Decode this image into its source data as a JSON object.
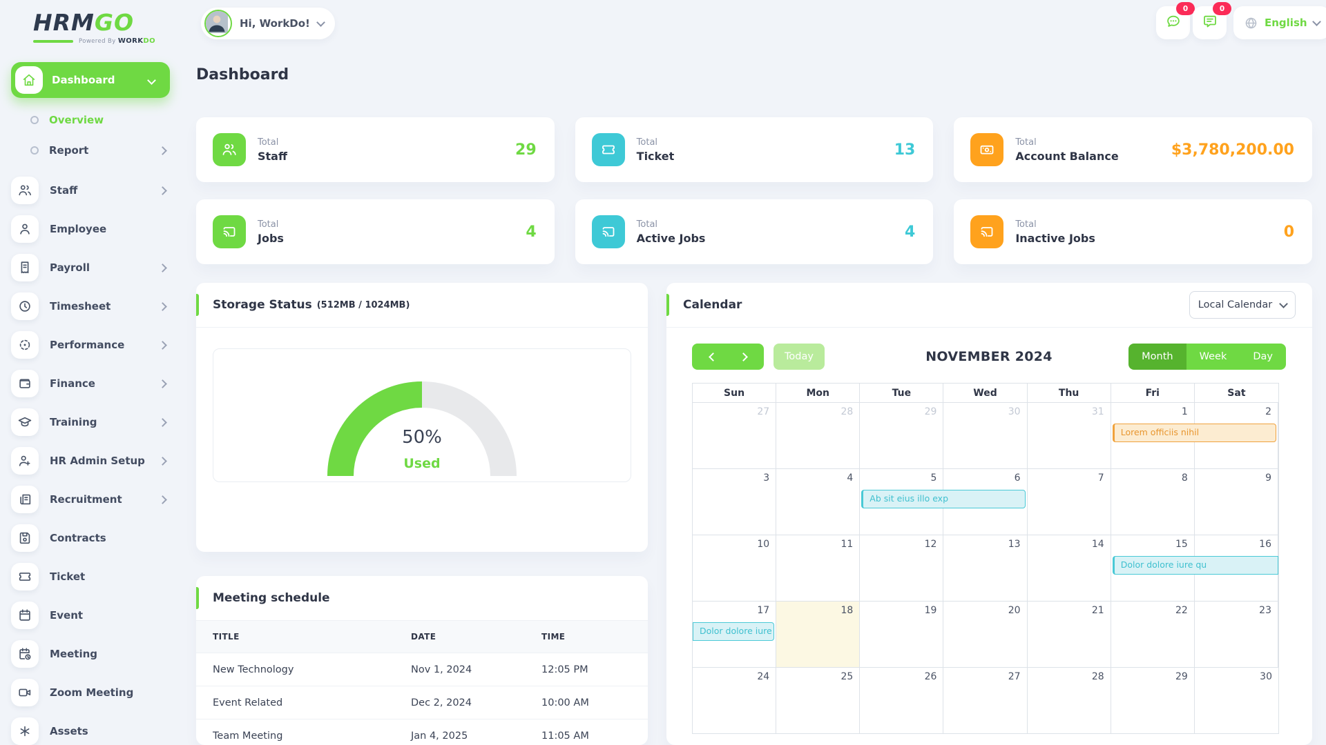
{
  "brand": {
    "name_primary": "HRM",
    "name_accent": "GO",
    "powered_prefix": "Powered By",
    "powered_word1": "WORK",
    "powered_word2": "DO"
  },
  "header": {
    "greeting": "Hi, WorkDo!",
    "chat_badge": "0",
    "notification_badge": "0",
    "language": "English"
  },
  "page": {
    "title": "Dashboard"
  },
  "sidebar": {
    "items": [
      {
        "label": "Dashboard",
        "icon": "home-icon",
        "variant": "active",
        "chevron": "down"
      },
      {
        "label": "Overview",
        "variant": "sub",
        "active": true
      },
      {
        "label": "Report",
        "variant": "sub",
        "chevron": "right"
      },
      {
        "label": "Staff",
        "icon": "users-icon",
        "chevron": "right"
      },
      {
        "label": "Employee",
        "icon": "user-icon"
      },
      {
        "label": "Payroll",
        "icon": "receipt-icon",
        "chevron": "right"
      },
      {
        "label": "Timesheet",
        "icon": "clock-icon",
        "chevron": "right"
      },
      {
        "label": "Performance",
        "icon": "target-icon",
        "chevron": "right"
      },
      {
        "label": "Finance",
        "icon": "wallet-icon",
        "chevron": "right"
      },
      {
        "label": "Training",
        "icon": "school-icon",
        "chevron": "right"
      },
      {
        "label": "HR Admin Setup",
        "icon": "user-plus-icon",
        "chevron": "right"
      },
      {
        "label": "Recruitment",
        "icon": "news-icon",
        "chevron": "right"
      },
      {
        "label": "Contracts",
        "icon": "floppy-icon"
      },
      {
        "label": "Ticket",
        "icon": "ticket-icon"
      },
      {
        "label": "Event",
        "icon": "calendar-icon"
      },
      {
        "label": "Meeting",
        "icon": "calendar-clock-icon"
      },
      {
        "label": "Zoom Meeting",
        "icon": "video-icon"
      },
      {
        "label": "Assets",
        "icon": "asterisk-icon"
      }
    ]
  },
  "stats": [
    {
      "prefix": "Total",
      "label": "Staff",
      "value": "29",
      "color": "#6fd943",
      "icon": "users-icon"
    },
    {
      "prefix": "Total",
      "label": "Ticket",
      "value": "13",
      "color": "#3ec9d6",
      "icon": "ticket-icon"
    },
    {
      "prefix": "Total",
      "label": "Account Balance",
      "value": "$3,780,200.00",
      "color": "#ffa21d",
      "icon": "cash-icon"
    },
    {
      "prefix": "Total",
      "label": "Jobs",
      "value": "4",
      "color": "#6fd943",
      "icon": "cast-icon"
    },
    {
      "prefix": "Total",
      "label": "Active Jobs",
      "value": "4",
      "color": "#3ec9d6",
      "icon": "cast-icon"
    },
    {
      "prefix": "Total",
      "label": "Inactive Jobs",
      "value": "0",
      "color": "#ffa21d",
      "icon": "cast-icon"
    }
  ],
  "storage": {
    "title": "Storage Status",
    "subtitle": "(512MB / 1024MB)",
    "percent": 50,
    "percent_label": "50%",
    "used_label": "Used"
  },
  "calendar": {
    "title": "Calendar",
    "source_select": "Local Calendar",
    "toolbar": {
      "today_label": "Today",
      "month_title": "NOVEMBER 2024",
      "views": [
        "Month",
        "Week",
        "Day"
      ],
      "active_view": "Month"
    },
    "day_headers": [
      "Sun",
      "Mon",
      "Tue",
      "Wed",
      "Thu",
      "Fri",
      "Sat"
    ],
    "weeks": [
      {
        "days": [
          {
            "d": "27",
            "muted": true
          },
          {
            "d": "28",
            "muted": true
          },
          {
            "d": "29",
            "muted": true
          },
          {
            "d": "30",
            "muted": true
          },
          {
            "d": "31",
            "muted": true
          },
          {
            "d": "1"
          },
          {
            "d": "2"
          }
        ],
        "events": [
          {
            "label": "Lorem officiis nihil",
            "color": "orange",
            "start": 5,
            "span": 2
          }
        ]
      },
      {
        "days": [
          {
            "d": "3"
          },
          {
            "d": "4"
          },
          {
            "d": "5"
          },
          {
            "d": "6"
          },
          {
            "d": "7"
          },
          {
            "d": "8"
          },
          {
            "d": "9"
          }
        ],
        "events": [
          {
            "label": "Ab sit eius illo exp",
            "color": "cyan",
            "start": 2,
            "span": 2
          }
        ]
      },
      {
        "days": [
          {
            "d": "10"
          },
          {
            "d": "11"
          },
          {
            "d": "12"
          },
          {
            "d": "13"
          },
          {
            "d": "14"
          },
          {
            "d": "15"
          },
          {
            "d": "16"
          }
        ],
        "events": [
          {
            "label": "Dolor dolore iure qu",
            "color": "cyan",
            "start": 5,
            "span": 2,
            "clip": "right"
          }
        ]
      },
      {
        "days": [
          {
            "d": "17"
          },
          {
            "d": "18",
            "today": true
          },
          {
            "d": "19"
          },
          {
            "d": "20"
          },
          {
            "d": "21"
          },
          {
            "d": "22"
          },
          {
            "d": "23"
          }
        ],
        "events": [
          {
            "label": "Dolor dolore iure",
            "color": "cyan",
            "start": 0,
            "span": 1,
            "clip": "left"
          }
        ]
      },
      {
        "days": [
          {
            "d": "24"
          },
          {
            "d": "25"
          },
          {
            "d": "26"
          },
          {
            "d": "27"
          },
          {
            "d": "28"
          },
          {
            "d": "29"
          },
          {
            "d": "30"
          }
        ],
        "events": []
      }
    ]
  },
  "meetings": {
    "title": "Meeting schedule",
    "columns": [
      "TITLE",
      "DATE",
      "TIME"
    ],
    "rows": [
      [
        "New Technology",
        "Nov 1, 2024",
        "12:05 PM"
      ],
      [
        "Event Related",
        "Dec 2, 2024",
        "10:00 AM"
      ],
      [
        "Team Meeting",
        "Jan 4, 2025",
        "11:05 AM"
      ]
    ]
  },
  "colors": {
    "primary": "#6fd943",
    "primary_dark": "#56b32e",
    "primary_light": "#b9eb9c",
    "cyan": "#3ec9d6",
    "orange": "#ffa21d",
    "badge_pink": "#fb2b57",
    "event_orange_bg": "#fcecd1",
    "event_orange_border": "#f0a23c",
    "event_orange_text": "#e8962f",
    "event_cyan_bg": "#d9f2f6",
    "event_cyan_border": "#49c9d6",
    "event_cyan_text": "#3fc0cf",
    "today_bg": "#fcf8e3"
  }
}
